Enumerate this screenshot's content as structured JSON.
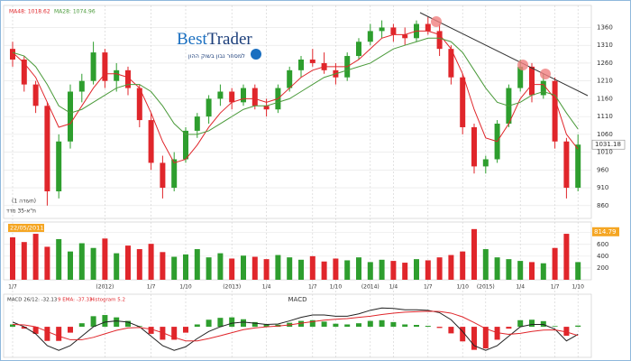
{
  "chart_data": {
    "type": "candlestick",
    "index_name": "ת\"א-35 מדד",
    "note": "(תעודה 1)",
    "logo": {
      "word1": "Best",
      "word2": "Trader",
      "subtitle": "למסחר נבון בשוק ההון"
    },
    "up_color": "#2e9e2e",
    "down_color": "#e0262b",
    "ohlc": {
      "open": [
        1300,
        1270,
        1200,
        1140,
        900,
        1040,
        1180,
        1210,
        1290,
        1210,
        1240,
        1190,
        1100,
        980,
        910,
        990,
        1070,
        1110,
        1160,
        1180,
        1150,
        1190,
        1140,
        1130,
        1190,
        1240,
        1270,
        1260,
        1240,
        1220,
        1280,
        1320,
        1350,
        1360,
        1340,
        1330,
        1370,
        1350,
        1300,
        1220,
        1080,
        970,
        990,
        1090,
        1190,
        1250,
        1170,
        1210,
        1040,
        910
      ],
      "high": [
        1320,
        1280,
        1210,
        1150,
        1060,
        1200,
        1230,
        1320,
        1300,
        1260,
        1250,
        1200,
        1120,
        1000,
        1010,
        1080,
        1120,
        1170,
        1200,
        1190,
        1200,
        1200,
        1160,
        1200,
        1250,
        1280,
        1300,
        1290,
        1260,
        1290,
        1330,
        1370,
        1380,
        1370,
        1360,
        1380,
        1390,
        1370,
        1310,
        1230,
        1090,
        1000,
        1100,
        1200,
        1270,
        1260,
        1230,
        1220,
        1050,
        1060
      ],
      "low": [
        1250,
        1180,
        1120,
        860,
        880,
        1020,
        1150,
        1200,
        1190,
        1180,
        1170,
        1080,
        960,
        880,
        900,
        980,
        1050,
        1090,
        1140,
        1130,
        1140,
        1130,
        1110,
        1120,
        1180,
        1220,
        1250,
        1230,
        1200,
        1210,
        1270,
        1310,
        1330,
        1320,
        1310,
        1320,
        1340,
        1280,
        1200,
        1060,
        950,
        950,
        980,
        1080,
        1180,
        1150,
        1160,
        1020,
        880,
        900
      ],
      "close": [
        1270,
        1200,
        1140,
        900,
        1040,
        1180,
        1210,
        1290,
        1210,
        1240,
        1190,
        1100,
        980,
        910,
        990,
        1070,
        1110,
        1160,
        1180,
        1150,
        1190,
        1140,
        1130,
        1190,
        1240,
        1270,
        1260,
        1240,
        1220,
        1280,
        1320,
        1350,
        1360,
        1340,
        1330,
        1370,
        1350,
        1300,
        1220,
        1080,
        970,
        990,
        1090,
        1190,
        1250,
        1170,
        1210,
        1040,
        910,
        1031.18
      ]
    },
    "ylim": [
      824,
      1422
    ],
    "yticks": [
      860,
      910,
      960,
      1010,
      1060,
      1110,
      1160,
      1210,
      1260,
      1310,
      1360
    ],
    "last_price": 1031.18,
    "moving_averages": [
      {
        "name": "MA48: 1018.62",
        "color": "#e0262b",
        "values": [
          1290,
          1260,
          1220,
          1150,
          1080,
          1090,
          1140,
          1190,
          1230,
          1230,
          1220,
          1190,
          1120,
          1040,
          980,
          990,
          1030,
          1080,
          1120,
          1150,
          1160,
          1160,
          1150,
          1160,
          1190,
          1220,
          1240,
          1250,
          1250,
          1250,
          1270,
          1300,
          1330,
          1340,
          1340,
          1350,
          1350,
          1340,
          1300,
          1230,
          1130,
          1050,
          1040,
          1090,
          1160,
          1200,
          1200,
          1160,
          1060,
          1018.62
        ]
      },
      {
        "name": "MA28: 1074.96",
        "color": "#4a9a3a",
        "values": [
          1290,
          1280,
          1250,
          1200,
          1140,
          1120,
          1130,
          1150,
          1170,
          1190,
          1200,
          1200,
          1180,
          1140,
          1090,
          1060,
          1060,
          1070,
          1090,
          1110,
          1130,
          1140,
          1140,
          1150,
          1160,
          1180,
          1200,
          1220,
          1230,
          1240,
          1250,
          1260,
          1280,
          1300,
          1310,
          1320,
          1330,
          1330,
          1320,
          1290,
          1240,
          1190,
          1150,
          1140,
          1150,
          1170,
          1180,
          1170,
          1120,
          1074.96
        ]
      }
    ],
    "xticks": [
      {
        "value": 0,
        "label": "1/7"
      },
      {
        "value": 8,
        "label": "(2012)"
      },
      {
        "value": 12,
        "label": "1/7"
      },
      {
        "value": 15,
        "label": "1/10"
      },
      {
        "value": 19,
        "label": "(2013)"
      },
      {
        "value": 22,
        "label": "1/4"
      },
      {
        "value": 26,
        "label": "1/7"
      },
      {
        "value": 28,
        "label": "1/10"
      },
      {
        "value": 31,
        "label": "(2014)"
      },
      {
        "value": 33,
        "label": "1/4"
      },
      {
        "value": 36,
        "label": "1/7"
      },
      {
        "value": 39,
        "label": "1/10"
      },
      {
        "value": 41,
        "label": "(2015)"
      },
      {
        "value": 44,
        "label": "1/4"
      },
      {
        "value": 47,
        "label": "1/7"
      },
      {
        "value": 49,
        "label": "1/10"
      }
    ],
    "volume": {
      "date_label": "22/05/2011",
      "last": 814.79,
      "values": [
        720,
        640,
        780,
        560,
        690,
        480,
        620,
        540,
        700,
        450,
        580,
        520,
        610,
        470,
        390,
        430,
        520,
        380,
        450,
        360,
        410,
        390,
        350,
        420,
        380,
        340,
        400,
        310,
        360,
        330,
        380,
        300,
        340,
        320,
        290,
        350,
        330,
        380,
        420,
        480,
        860,
        520,
        380,
        350,
        320,
        300,
        280,
        540,
        780,
        300
      ],
      "ylim": [
        0,
        980
      ],
      "yticks": [
        200,
        400,
        600,
        800
      ]
    },
    "macd": {
      "title": "MACD",
      "legend": [
        "MACD 26/12: -32.13",
        "9 EMA: -37.33",
        "Histogram 5.2"
      ],
      "macd": [
        20,
        0,
        -30,
        -80,
        -100,
        -80,
        -40,
        0,
        20,
        25,
        20,
        0,
        -40,
        -80,
        -100,
        -85,
        -50,
        -20,
        0,
        15,
        20,
        15,
        10,
        12,
        25,
        40,
        50,
        50,
        45,
        45,
        55,
        70,
        80,
        78,
        72,
        72,
        70,
        60,
        30,
        -20,
        -80,
        -100,
        -80,
        -40,
        0,
        10,
        10,
        -10,
        -60,
        -32.13
      ],
      "signal": [
        10,
        8,
        0,
        -20,
        -40,
        -55,
        -55,
        -45,
        -30,
        -15,
        -5,
        -3,
        -10,
        -25,
        -45,
        -60,
        -60,
        -50,
        -38,
        -25,
        -12,
        -5,
        0,
        3,
        8,
        15,
        22,
        28,
        32,
        35,
        40,
        45,
        52,
        58,
        62,
        64,
        66,
        65,
        58,
        42,
        18,
        -8,
        -25,
        -32,
        -28,
        -20,
        -14,
        -13,
        -22,
        -37.33
      ],
      "histogram": [
        10,
        -8,
        -30,
        -60,
        -60,
        -25,
        15,
        45,
        50,
        40,
        25,
        3,
        -30,
        -55,
        -55,
        -25,
        10,
        30,
        38,
        40,
        32,
        20,
        10,
        9,
        17,
        25,
        28,
        22,
        13,
        10,
        15,
        25,
        28,
        20,
        10,
        8,
        4,
        -5,
        -28,
        -62,
        -98,
        -92,
        -55,
        -8,
        28,
        30,
        24,
        3,
        -38,
        5.2
      ],
      "ylim": [
        -130,
        100
      ]
    }
  }
}
